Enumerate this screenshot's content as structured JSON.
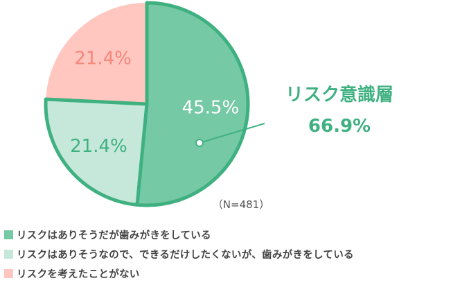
{
  "chart_data": {
    "type": "pie",
    "slices": [
      {
        "label": "リスクはありそうだが歯みがきをしている",
        "value": 45.5,
        "display": "45.5%",
        "color": "#76c9a5",
        "text_color": "#ffffff"
      },
      {
        "label": "リスクはありそうなので、できるだけしたくないが、歯みがきをしている",
        "value": 21.4,
        "display": "21.4%",
        "color": "#c5e8da",
        "text_color": "#3fb181"
      },
      {
        "label": "リスクを考えたことがない",
        "value": 21.4,
        "display": "21.4%",
        "color": "#ffc7c0",
        "text_color": "#f5877b"
      }
    ],
    "highlight": {
      "title": "リスク意識層",
      "value": "66.9%",
      "color": "#3fb181",
      "slices": [
        0,
        1
      ]
    },
    "sample_note": "（N=481）",
    "title": ""
  }
}
